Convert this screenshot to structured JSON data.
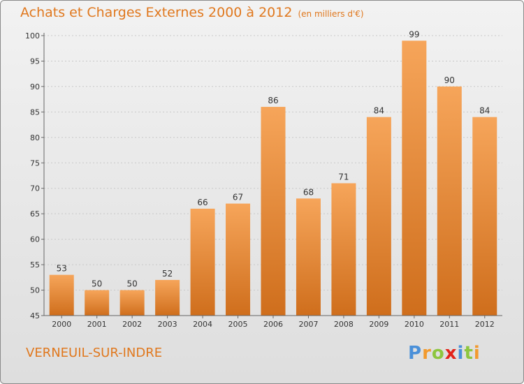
{
  "title": "Achats et Charges Externes 2000 à 2012",
  "subtitle": "(en milliers d'€)",
  "commune": "VERNEUIL-SUR-INDRE",
  "brand": {
    "letters": [
      "P",
      "r",
      "o",
      "x",
      "i",
      "t",
      "i"
    ],
    "colors": [
      "#4a90d9",
      "#f29a2e",
      "#8dc63f",
      "#e2231a",
      "#4a90d9",
      "#8dc63f",
      "#f29a2e"
    ]
  },
  "colors": {
    "accent": "#e0781e",
    "bar_top": "#f6a55a",
    "bar_bottom": "#cf6e1c"
  },
  "chart_data": {
    "type": "bar",
    "categories": [
      "2000",
      "2001",
      "2002",
      "2003",
      "2004",
      "2005",
      "2006",
      "2007",
      "2008",
      "2009",
      "2010",
      "2011",
      "2012"
    ],
    "values": [
      53,
      50,
      50,
      52,
      66,
      67,
      86,
      68,
      71,
      84,
      99,
      90,
      84
    ],
    "xlabel": "",
    "ylabel": "",
    "ylim": [
      45,
      100
    ],
    "yticks": [
      45,
      50,
      55,
      60,
      65,
      70,
      75,
      80,
      85,
      90,
      95,
      100
    ],
    "grid": true,
    "data_labels": true
  }
}
